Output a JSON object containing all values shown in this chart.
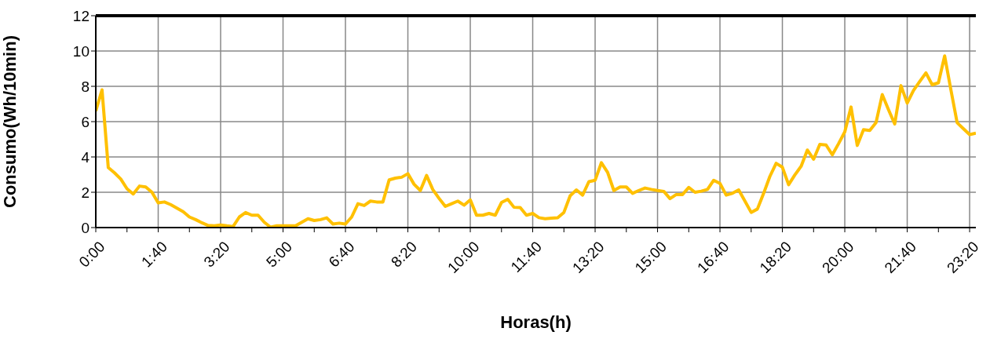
{
  "chart_data": {
    "type": "line",
    "xlabel": "Horas(h)",
    "ylabel": "Consumo(Wh/10min)",
    "x": [
      0,
      0.1667,
      0.3333,
      0.5,
      0.6667,
      0.8333,
      1,
      1.1667,
      1.3333,
      1.5,
      1.6667,
      1.8333,
      2,
      2.1667,
      2.3333,
      2.5,
      2.6667,
      2.8333,
      3,
      3.1667,
      3.3333,
      3.5,
      3.6667,
      3.8333,
      4,
      4.1667,
      4.3333,
      4.5,
      4.6667,
      4.8333,
      5,
      5.1667,
      5.3333,
      5.5,
      5.6667,
      5.8333,
      6,
      6.1667,
      6.3333,
      6.5,
      6.6667,
      6.8333,
      7,
      7.1667,
      7.3333,
      7.5,
      7.6667,
      7.8333,
      8,
      8.1667,
      8.3333,
      8.5,
      8.6667,
      8.8333,
      9,
      9.1667,
      9.3333,
      9.5,
      9.6667,
      9.8333,
      10,
      10.1667,
      10.3333,
      10.5,
      10.6667,
      10.8333,
      11,
      11.1667,
      11.3333,
      11.5,
      11.6667,
      11.8333,
      12,
      12.1667,
      12.3333,
      12.5,
      12.6667,
      12.8333,
      13,
      13.1667,
      13.3333,
      13.5,
      13.6667,
      13.8333,
      14,
      14.1667,
      14.3333,
      14.5,
      14.6667,
      14.8333,
      15,
      15.1667,
      15.3333,
      15.5,
      15.6667,
      15.8333,
      16,
      16.1667,
      16.3333,
      16.5,
      16.6667,
      16.8333,
      17,
      17.1667,
      17.3333,
      17.5,
      17.6667,
      17.8333,
      18,
      18.1667,
      18.3333,
      18.5,
      18.6667,
      18.8333,
      19,
      19.1667,
      19.3333,
      19.5,
      19.6667,
      19.8333,
      20,
      20.1667,
      20.3333,
      20.5,
      20.6667,
      20.8333,
      21,
      21.1667,
      21.3333,
      21.5,
      21.6667,
      21.8333,
      22,
      22.1667,
      22.3333,
      22.5,
      22.6667,
      22.8333,
      23,
      23.1667,
      23.3333,
      23.5
    ],
    "series": [
      {
        "color": "#ffc000",
        "values": [
          6.6,
          7.8,
          3.4,
          3.1,
          2.75,
          2.2,
          1.9,
          2.35,
          2.3,
          2.0,
          1.4,
          1.45,
          1.3,
          1.1,
          0.9,
          0.6,
          0.45,
          0.27,
          0.12,
          0.1,
          0.15,
          0.1,
          0.06,
          0.6,
          0.85,
          0.7,
          0.7,
          0.3,
          0.02,
          0.1,
          0.1,
          0.1,
          0.1,
          0.3,
          0.5,
          0.4,
          0.45,
          0.55,
          0.2,
          0.25,
          0.2,
          0.6,
          1.35,
          1.25,
          1.5,
          1.45,
          1.45,
          2.7,
          2.8,
          2.85,
          3.05,
          2.45,
          2.1,
          2.95,
          2.15,
          1.65,
          1.2,
          1.35,
          1.5,
          1.27,
          1.57,
          0.7,
          0.7,
          0.8,
          0.7,
          1.42,
          1.6,
          1.15,
          1.13,
          0.7,
          0.8,
          0.56,
          0.5,
          0.53,
          0.56,
          0.86,
          1.8,
          2.13,
          1.84,
          2.6,
          2.68,
          3.67,
          3.13,
          2.1,
          2.3,
          2.3,
          1.94,
          2.1,
          2.24,
          2.16,
          2.1,
          2.05,
          1.64,
          1.87,
          1.87,
          2.27,
          2.0,
          2.06,
          2.16,
          2.68,
          2.5,
          1.84,
          1.94,
          2.13,
          1.5,
          0.86,
          1.05,
          1.94,
          2.9,
          3.64,
          3.42,
          2.43,
          2.98,
          3.47,
          4.39,
          3.87,
          4.71,
          4.68,
          4.12,
          4.75,
          5.42,
          6.83,
          4.65,
          5.54,
          5.5,
          5.94,
          7.53,
          6.68,
          5.87,
          8.04,
          7.05,
          7.76,
          8.27,
          8.76,
          8.09,
          8.2,
          9.72,
          7.8,
          5.94,
          5.6,
          5.27,
          5.35
        ]
      }
    ],
    "xlim": [
      0,
      23.5
    ],
    "xticks": [
      {
        "value": 0,
        "label": "0:00"
      },
      {
        "value": 0.8333,
        "label": null
      },
      {
        "value": 1.6667,
        "label": "1:40"
      },
      {
        "value": 2.5,
        "label": null
      },
      {
        "value": 3.3333,
        "label": "3:20"
      },
      {
        "value": 4.1667,
        "label": null
      },
      {
        "value": 5,
        "label": "5:00"
      },
      {
        "value": 5.8333,
        "label": null
      },
      {
        "value": 6.6667,
        "label": "6:40"
      },
      {
        "value": 7.5,
        "label": null
      },
      {
        "value": 8.3333,
        "label": "8:20"
      },
      {
        "value": 9.1667,
        "label": null
      },
      {
        "value": 10,
        "label": "10:00"
      },
      {
        "value": 10.8333,
        "label": null
      },
      {
        "value": 11.6667,
        "label": "11:40"
      },
      {
        "value": 12.5,
        "label": null
      },
      {
        "value": 13.3333,
        "label": "13:20"
      },
      {
        "value": 14.1667,
        "label": null
      },
      {
        "value": 15,
        "label": "15:00"
      },
      {
        "value": 15.8333,
        "label": null
      },
      {
        "value": 16.6667,
        "label": "16:40"
      },
      {
        "value": 17.5,
        "label": null
      },
      {
        "value": 18.3333,
        "label": "18:20"
      },
      {
        "value": 19.1667,
        "label": null
      },
      {
        "value": 20,
        "label": "20:00"
      },
      {
        "value": 20.8333,
        "label": null
      },
      {
        "value": 21.6667,
        "label": "21:40"
      },
      {
        "value": 22.5,
        "label": null
      },
      {
        "value": 23.3333,
        "label": "23:20"
      }
    ],
    "ylim": [
      0,
      12
    ],
    "yticks": [
      0,
      2,
      4,
      6,
      8,
      10,
      12
    ],
    "grid": true,
    "marker": "none",
    "line_style": "solid"
  }
}
